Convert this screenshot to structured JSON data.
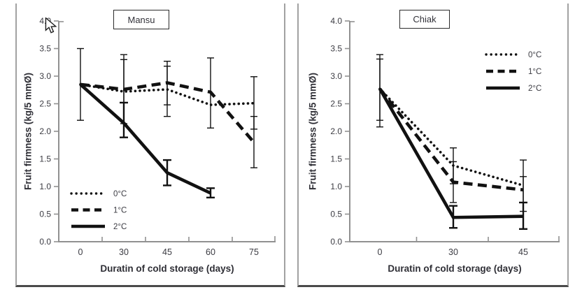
{
  "shared": {
    "ylabel": "Fruit firmness (kg/5 mmØ)",
    "xlabel": "Duratin of cold storage (days)",
    "colors": {
      "line": "#111111",
      "axis": "#919191",
      "text": "#3b3b42"
    }
  },
  "icons": {
    "mouse_cursor": "arrow-pointer"
  },
  "chart_data": [
    {
      "type": "line",
      "title": "Mansu",
      "xlabel": "Duratin of cold storage (days)",
      "ylabel": "Fruit firmness (kg/5 mmØ)",
      "categories": [
        0,
        30,
        45,
        60,
        75
      ],
      "ylim": [
        0.0,
        4.0
      ],
      "ytick_step": 0.5,
      "grid": false,
      "legend_position": "bottom-left",
      "series": [
        {
          "name": "0°C",
          "style": "dotted",
          "values": [
            2.85,
            2.72,
            2.76,
            2.48,
            2.51
          ],
          "errors": [
            null,
            [
              2.14,
              3.3
            ],
            [
              2.27,
              3.18
            ],
            null,
            [
              2.04,
              2.99
            ]
          ]
        },
        {
          "name": "1°C",
          "style": "dashed",
          "values": [
            2.85,
            2.76,
            2.88,
            2.71,
            1.8
          ],
          "errors": [
            [
              2.2,
              3.5
            ],
            [
              1.89,
              3.39
            ],
            [
              2.48,
              3.27
            ],
            [
              2.06,
              3.33
            ],
            [
              1.34,
              2.27
            ]
          ]
        },
        {
          "name": "2°C",
          "style": "solid",
          "values": [
            2.85,
            2.15,
            1.25,
            0.88,
            null
          ],
          "errors": [
            null,
            [
              1.89,
              2.52
            ],
            [
              1.02,
              1.48
            ],
            [
              0.8,
              0.97
            ],
            null
          ]
        }
      ]
    },
    {
      "type": "line",
      "title": "Chiak",
      "xlabel": "Duratin of cold storage (days)",
      "ylabel": "Fruit firmness (kg/5 mmØ)",
      "categories": [
        0,
        30,
        45
      ],
      "ylim": [
        0.0,
        4.0
      ],
      "ytick_step": 0.5,
      "grid": false,
      "legend_position": "top-right",
      "series": [
        {
          "name": "0°C",
          "style": "dotted",
          "values": [
            2.77,
            1.38,
            1.02
          ],
          "errors": [
            [
              2.2,
              3.31
            ],
            [
              1.05,
              1.7
            ],
            [
              0.55,
              1.48
            ]
          ]
        },
        {
          "name": "1°C",
          "style": "dashed",
          "values": [
            2.77,
            1.08,
            0.94
          ],
          "errors": [
            [
              2.08,
              3.39
            ],
            [
              0.71,
              1.45
            ],
            [
              0.71,
              1.18
            ]
          ]
        },
        {
          "name": "2°C",
          "style": "solid",
          "values": [
            2.77,
            0.44,
            0.46
          ],
          "errors": [
            null,
            [
              0.25,
              0.65
            ],
            [
              0.23,
              0.71
            ]
          ]
        }
      ]
    }
  ]
}
